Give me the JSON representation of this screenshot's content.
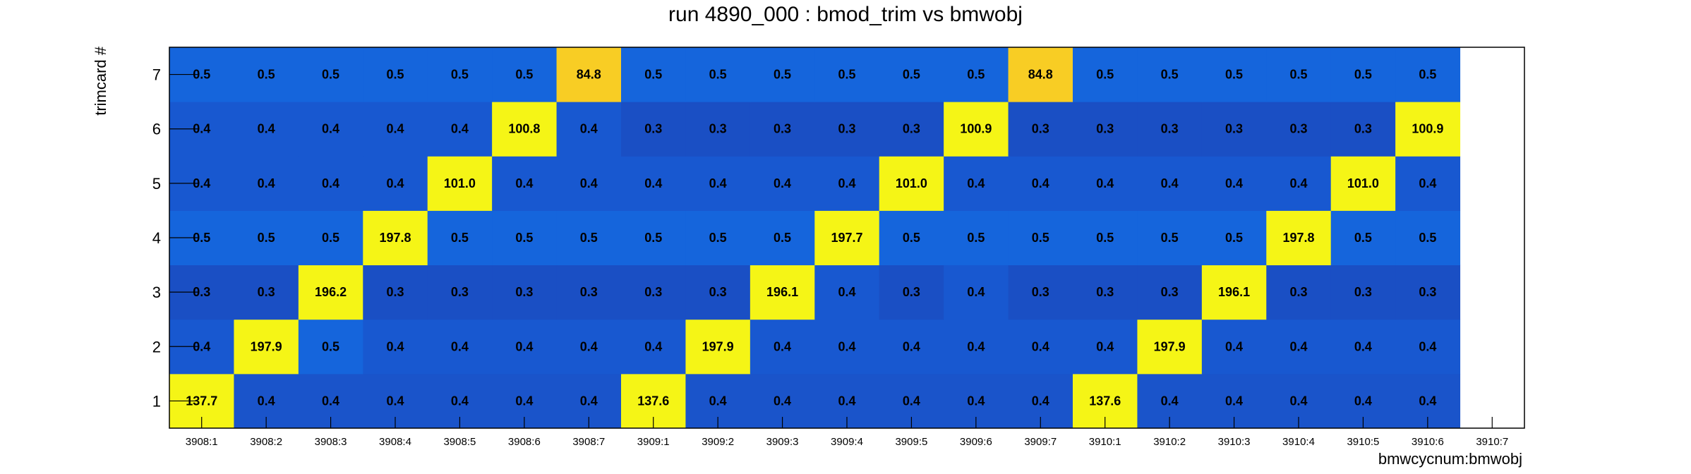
{
  "chart_data": {
    "type": "heatmap",
    "title": "run 4890_000 : bmod_trim vs bmwobj",
    "xlabel": "bmwcycnum:bmwobj",
    "ylabel": "trimcard #",
    "x_categories": [
      "3908:1",
      "3908:2",
      "3908:3",
      "3908:4",
      "3908:5",
      "3908:6",
      "3908:7",
      "3909:1",
      "3909:2",
      "3909:3",
      "3909:4",
      "3909:5",
      "3909:6",
      "3909:7",
      "3910:1",
      "3910:2",
      "3910:3",
      "3910:4",
      "3910:5",
      "3910:6",
      "3910:7"
    ],
    "y_categories": [
      "1",
      "2",
      "3",
      "4",
      "5",
      "6",
      "7"
    ],
    "values": [
      [
        "137.7",
        "0.4",
        "0.4",
        "0.4",
        "0.4",
        "0.4",
        "0.4",
        "137.6",
        "0.4",
        "0.4",
        "0.4",
        "0.4",
        "0.4",
        "0.4",
        "137.6",
        "0.4",
        "0.4",
        "0.4",
        "0.4",
        "0.4",
        null
      ],
      [
        "0.4",
        "197.9",
        "0.5",
        "0.4",
        "0.4",
        "0.4",
        "0.4",
        "0.4",
        "197.9",
        "0.4",
        "0.4",
        "0.4",
        "0.4",
        "0.4",
        "0.4",
        "197.9",
        "0.4",
        "0.4",
        "0.4",
        "0.4",
        null
      ],
      [
        "0.3",
        "0.3",
        "196.2",
        "0.3",
        "0.3",
        "0.3",
        "0.3",
        "0.3",
        "0.3",
        "196.1",
        "0.4",
        "0.3",
        "0.4",
        "0.3",
        "0.3",
        "0.3",
        "196.1",
        "0.3",
        "0.3",
        "0.3",
        null
      ],
      [
        "0.5",
        "0.5",
        "0.5",
        "197.8",
        "0.5",
        "0.5",
        "0.5",
        "0.5",
        "0.5",
        "0.5",
        "197.7",
        "0.5",
        "0.5",
        "0.5",
        "0.5",
        "0.5",
        "0.5",
        "197.8",
        "0.5",
        "0.5",
        null
      ],
      [
        "0.4",
        "0.4",
        "0.4",
        "0.4",
        "101.0",
        "0.4",
        "0.4",
        "0.4",
        "0.4",
        "0.4",
        "0.4",
        "101.0",
        "0.4",
        "0.4",
        "0.4",
        "0.4",
        "0.4",
        "0.4",
        "101.0",
        "0.4",
        null
      ],
      [
        "0.4",
        "0.4",
        "0.4",
        "0.4",
        "0.4",
        "100.8",
        "0.4",
        "0.3",
        "0.3",
        "0.3",
        "0.3",
        "0.3",
        "100.9",
        "0.3",
        "0.3",
        "0.3",
        "0.3",
        "0.3",
        "0.3",
        "100.9",
        null
      ],
      [
        "0.5",
        "0.5",
        "0.5",
        "0.5",
        "0.5",
        "0.5",
        "84.8",
        "0.5",
        "0.5",
        "0.5",
        "0.5",
        "0.5",
        "0.5",
        "84.8",
        "0.5",
        "0.5",
        "0.5",
        "0.5",
        "0.5",
        "0.5",
        null
      ]
    ],
    "colors": {
      "high": "#f5f516",
      "mid_high": "#f8cd24",
      "low": "#1863d9",
      "lower": "#1752c8",
      "frame": "#000000"
    }
  }
}
